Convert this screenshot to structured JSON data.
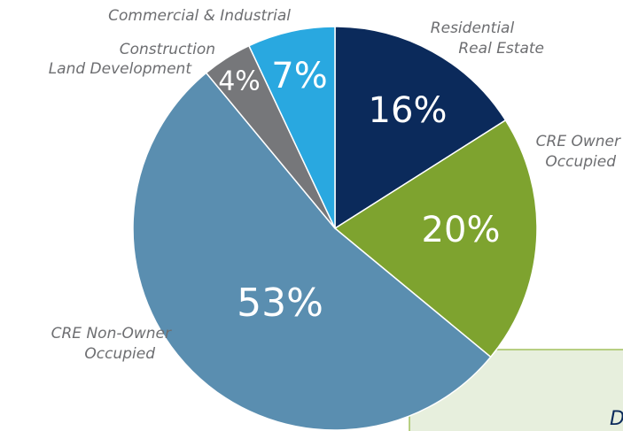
{
  "chart_data": {
    "type": "pie",
    "categories": [
      [
        "Residential",
        "Real Estate"
      ],
      [
        "CRE Owner",
        "Occupied"
      ],
      [
        "CRE Non-Owner",
        "Occupied"
      ],
      [
        "Construction",
        "Land Development"
      ],
      [
        "Commercial & Industrial"
      ]
    ],
    "values": [
      16,
      20,
      53,
      4,
      7
    ],
    "value_labels": [
      "16%",
      "20%",
      "53%",
      "4%",
      "7%"
    ],
    "colors": [
      "#0b2a5b",
      "#7ea32f",
      "#5a8eb0",
      "#76777a",
      "#29a8e0"
    ]
  },
  "callout": {
    "text": "D"
  }
}
